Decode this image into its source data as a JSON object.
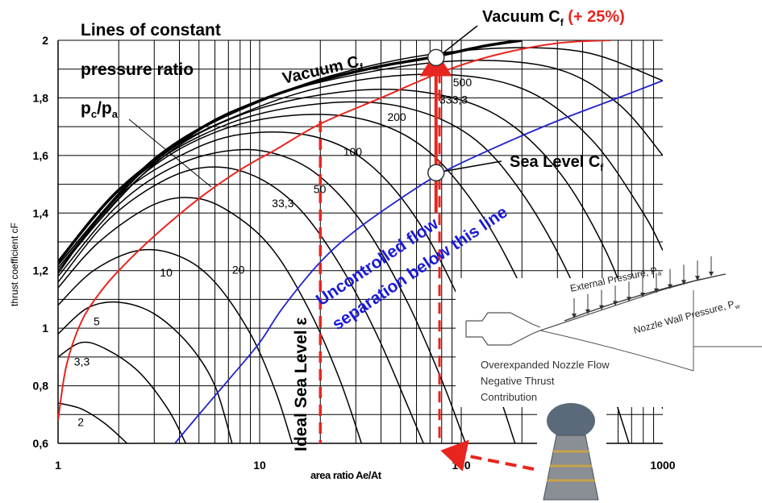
{
  "chart_data": {
    "type": "line",
    "title_lines": [
      "Lines of constant",
      "pressure ratio"
    ],
    "title_ratio": {
      "base": "p",
      "sub1": "c",
      "slash": "/p",
      "sub2": "a"
    },
    "xlabel": "area ratio Ae/At",
    "ylabel": "thrust coefficient cF",
    "x_scale": "log",
    "xlim": [
      1,
      1000
    ],
    "ylim": [
      0.6,
      2.0
    ],
    "grid": true,
    "x_ticks": [
      1,
      10,
      100,
      1000
    ],
    "x_tick_labels": [
      "1",
      "10",
      "100",
      "1000"
    ],
    "y_ticks": [
      0.6,
      0.8,
      1.0,
      1.2,
      1.4,
      1.6,
      1.8,
      2.0
    ],
    "y_tick_labels": [
      "0,6",
      "0,8",
      "1",
      "1,2",
      "1,4",
      "1,6",
      "1,8",
      "2"
    ],
    "pressure_ratio_curves": [
      {
        "label": "2",
        "points": [
          [
            1,
            0.74
          ],
          [
            1.3,
            0.72
          ],
          [
            1.7,
            0.67
          ],
          [
            2.2,
            0.6
          ]
        ]
      },
      {
        "label": "3,3",
        "points": [
          [
            1,
            0.9
          ],
          [
            1.3,
            0.95
          ],
          [
            1.7,
            0.93
          ],
          [
            2.5,
            0.85
          ],
          [
            3.5,
            0.72
          ],
          [
            4.3,
            0.6
          ]
        ]
      },
      {
        "label": "5",
        "points": [
          [
            1,
            0.98
          ],
          [
            1.4,
            1.07
          ],
          [
            2,
            1.09
          ],
          [
            3,
            1.05
          ],
          [
            4.5,
            0.94
          ],
          [
            6,
            0.8
          ],
          [
            7.3,
            0.6
          ]
        ]
      },
      {
        "label": "10",
        "points": [
          [
            1,
            1.08
          ],
          [
            1.5,
            1.2
          ],
          [
            2.5,
            1.27
          ],
          [
            4,
            1.25
          ],
          [
            6,
            1.16
          ],
          [
            9,
            0.98
          ],
          [
            12,
            0.78
          ],
          [
            14.5,
            0.6
          ]
        ]
      },
      {
        "label": "20",
        "points": [
          [
            1,
            1.14
          ],
          [
            1.6,
            1.3
          ],
          [
            3,
            1.43
          ],
          [
            5,
            1.45
          ],
          [
            8,
            1.38
          ],
          [
            12,
            1.26
          ],
          [
            18,
            1.05
          ],
          [
            25,
            0.82
          ],
          [
            32,
            0.6
          ]
        ]
      },
      {
        "label": "33,3",
        "points": [
          [
            1,
            1.16
          ],
          [
            1.8,
            1.38
          ],
          [
            3.5,
            1.52
          ],
          [
            6,
            1.56
          ],
          [
            10,
            1.52
          ],
          [
            16,
            1.41
          ],
          [
            25,
            1.22
          ],
          [
            38,
            0.98
          ],
          [
            55,
            0.72
          ],
          [
            65,
            0.6
          ]
        ]
      },
      {
        "label": "50",
        "points": [
          [
            1,
            1.18
          ],
          [
            2,
            1.43
          ],
          [
            4,
            1.57
          ],
          [
            8,
            1.62
          ],
          [
            14,
            1.59
          ],
          [
            22,
            1.5
          ],
          [
            35,
            1.33
          ],
          [
            55,
            1.08
          ],
          [
            80,
            0.82
          ],
          [
            105,
            0.6
          ]
        ]
      },
      {
        "label": "100",
        "points": [
          [
            1,
            1.19
          ],
          [
            2,
            1.46
          ],
          [
            5,
            1.63
          ],
          [
            10,
            1.68
          ],
          [
            20,
            1.66
          ],
          [
            35,
            1.57
          ],
          [
            60,
            1.38
          ],
          [
            95,
            1.12
          ],
          [
            140,
            0.85
          ],
          [
            185,
            0.6
          ]
        ]
      },
      {
        "label": "200",
        "points": [
          [
            1,
            1.2
          ],
          [
            2.5,
            1.52
          ],
          [
            6,
            1.68
          ],
          [
            15,
            1.74
          ],
          [
            35,
            1.72
          ],
          [
            70,
            1.61
          ],
          [
            130,
            1.38
          ],
          [
            220,
            1.08
          ],
          [
            320,
            0.82
          ],
          [
            410,
            0.6
          ]
        ]
      },
      {
        "label": "333,3",
        "points": [
          [
            1,
            1.2
          ],
          [
            2.5,
            1.53
          ],
          [
            7,
            1.71
          ],
          [
            20,
            1.78
          ],
          [
            50,
            1.77
          ],
          [
            110,
            1.67
          ],
          [
            200,
            1.47
          ],
          [
            350,
            1.17
          ],
          [
            520,
            0.85
          ],
          [
            680,
            0.6
          ]
        ]
      },
      {
        "label": "500",
        "points": [
          [
            1,
            1.21
          ],
          [
            3,
            1.57
          ],
          [
            8,
            1.74
          ],
          [
            25,
            1.82
          ],
          [
            65,
            1.82
          ],
          [
            150,
            1.74
          ],
          [
            300,
            1.55
          ],
          [
            520,
            1.27
          ],
          [
            780,
            0.95
          ],
          [
            1000,
            0.72
          ]
        ]
      },
      {
        "label": "",
        "points": [
          [
            1,
            1.21
          ],
          [
            3,
            1.58
          ],
          [
            10,
            1.77
          ],
          [
            30,
            1.86
          ],
          [
            90,
            1.88
          ],
          [
            220,
            1.82
          ],
          [
            450,
            1.65
          ],
          [
            800,
            1.4
          ],
          [
            1000,
            1.27
          ]
        ]
      },
      {
        "label": "",
        "points": [
          [
            1,
            1.22
          ],
          [
            3,
            1.59
          ],
          [
            10,
            1.79
          ],
          [
            35,
            1.89
          ],
          [
            110,
            1.93
          ],
          [
            300,
            1.9
          ],
          [
            600,
            1.78
          ],
          [
            1000,
            1.6
          ]
        ]
      },
      {
        "label": "",
        "points": [
          [
            1,
            1.22
          ],
          [
            3.2,
            1.6
          ],
          [
            12,
            1.81
          ],
          [
            40,
            1.92
          ],
          [
            130,
            1.97
          ],
          [
            400,
            1.96
          ],
          [
            1000,
            1.86
          ]
        ]
      }
    ],
    "vacuum_cf_curve": [
      [
        1,
        1.23
      ],
      [
        2,
        1.48
      ],
      [
        5,
        1.69
      ],
      [
        10,
        1.79
      ],
      [
        20,
        1.86
      ],
      [
        40,
        1.91
      ],
      [
        70,
        1.94
      ],
      [
        130,
        1.98
      ],
      [
        200,
        2.0
      ]
    ],
    "red_curve": {
      "color": "#e8251f",
      "points": [
        [
          1,
          0.68
        ],
        [
          1.1,
          0.87
        ],
        [
          1.3,
          1.02
        ],
        [
          1.6,
          1.12
        ],
        [
          2,
          1.2
        ],
        [
          3,
          1.32
        ],
        [
          5,
          1.45
        ],
        [
          8,
          1.55
        ],
        [
          12,
          1.62
        ],
        [
          20,
          1.71
        ],
        [
          40,
          1.8
        ],
        [
          80,
          1.89
        ],
        [
          150,
          1.95
        ],
        [
          300,
          1.99
        ],
        [
          550,
          2.0
        ]
      ]
    },
    "blue_curve": {
      "color": "#2222cc",
      "points": [
        [
          3.8,
          0.6
        ],
        [
          5,
          0.7
        ],
        [
          7,
          0.82
        ],
        [
          10,
          0.95
        ],
        [
          13,
          1.07
        ],
        [
          20,
          1.23
        ],
        [
          30,
          1.34
        ],
        [
          50,
          1.45
        ],
        [
          80,
          1.54
        ],
        [
          150,
          1.63
        ],
        [
          300,
          1.72
        ],
        [
          600,
          1.8
        ],
        [
          1000,
          1.86
        ]
      ]
    },
    "annotations": {
      "vacuum_cf": {
        "text": "Vacuum C",
        "sub": "f"
      },
      "vacuum_cf_top": {
        "text": "Vacuum C",
        "sub": "f",
        "suffix": " (+ 25%)",
        "suffix_color": "#e8251f"
      },
      "sea_level_cf": {
        "text": "Sea Level C",
        "sub": "f"
      },
      "separation": {
        "line1": "Uncontrolled flow",
        "line2": "separation below this line",
        "color": "#1a1ad9"
      },
      "ideal_sea_level": "Ideal Sea Level ε",
      "nozzle_points": [
        {
          "name": "vacuum-point",
          "x": 75,
          "y": 1.94
        },
        {
          "name": "sea-level-point",
          "x": 75,
          "y": 1.54
        }
      ],
      "dashed_sea_level_line": {
        "x": 20,
        "y_top": 1.72
      },
      "dashed_vacuum_line": {
        "x": 78,
        "y_top": 1.89
      },
      "vacuum_arrow": {
        "x": 75,
        "y_from": 1.4,
        "y_to": 1.92
      }
    },
    "inset": {
      "external_pressure": "External Pressure, P",
      "external_pressure_sub": "a",
      "wall_pressure": "Nozzle Wall Pressure, P",
      "wall_pressure_sub": "w",
      "caption_lines": [
        "Overexpanded Nozzle Flow",
        "Negative Thrust",
        "Contribution"
      ]
    }
  }
}
